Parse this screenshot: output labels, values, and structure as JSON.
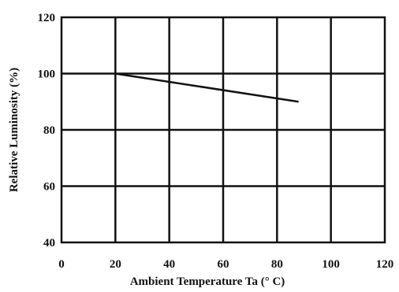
{
  "chart_data": {
    "type": "line",
    "title": "",
    "xlabel": "Ambient Temperature Ta (° C)",
    "ylabel": "Relative Luminosity (%)",
    "xlim": [
      0,
      120
    ],
    "ylim": [
      40,
      120
    ],
    "xticks": [
      "0",
      "20",
      "40",
      "60",
      "80",
      "100",
      "120"
    ],
    "yticks": [
      "40",
      "60",
      "80",
      "100",
      "120"
    ],
    "xtick_values": [
      0,
      20,
      40,
      60,
      80,
      100,
      120
    ],
    "ytick_values": [
      40,
      60,
      80,
      100,
      120
    ],
    "grid": true,
    "series": [
      {
        "x": [
          20,
          88
        ],
        "y": [
          100,
          90
        ]
      }
    ],
    "colors": {
      "line": "#111111",
      "grid": "#111111",
      "background": "#ffffff"
    }
  }
}
